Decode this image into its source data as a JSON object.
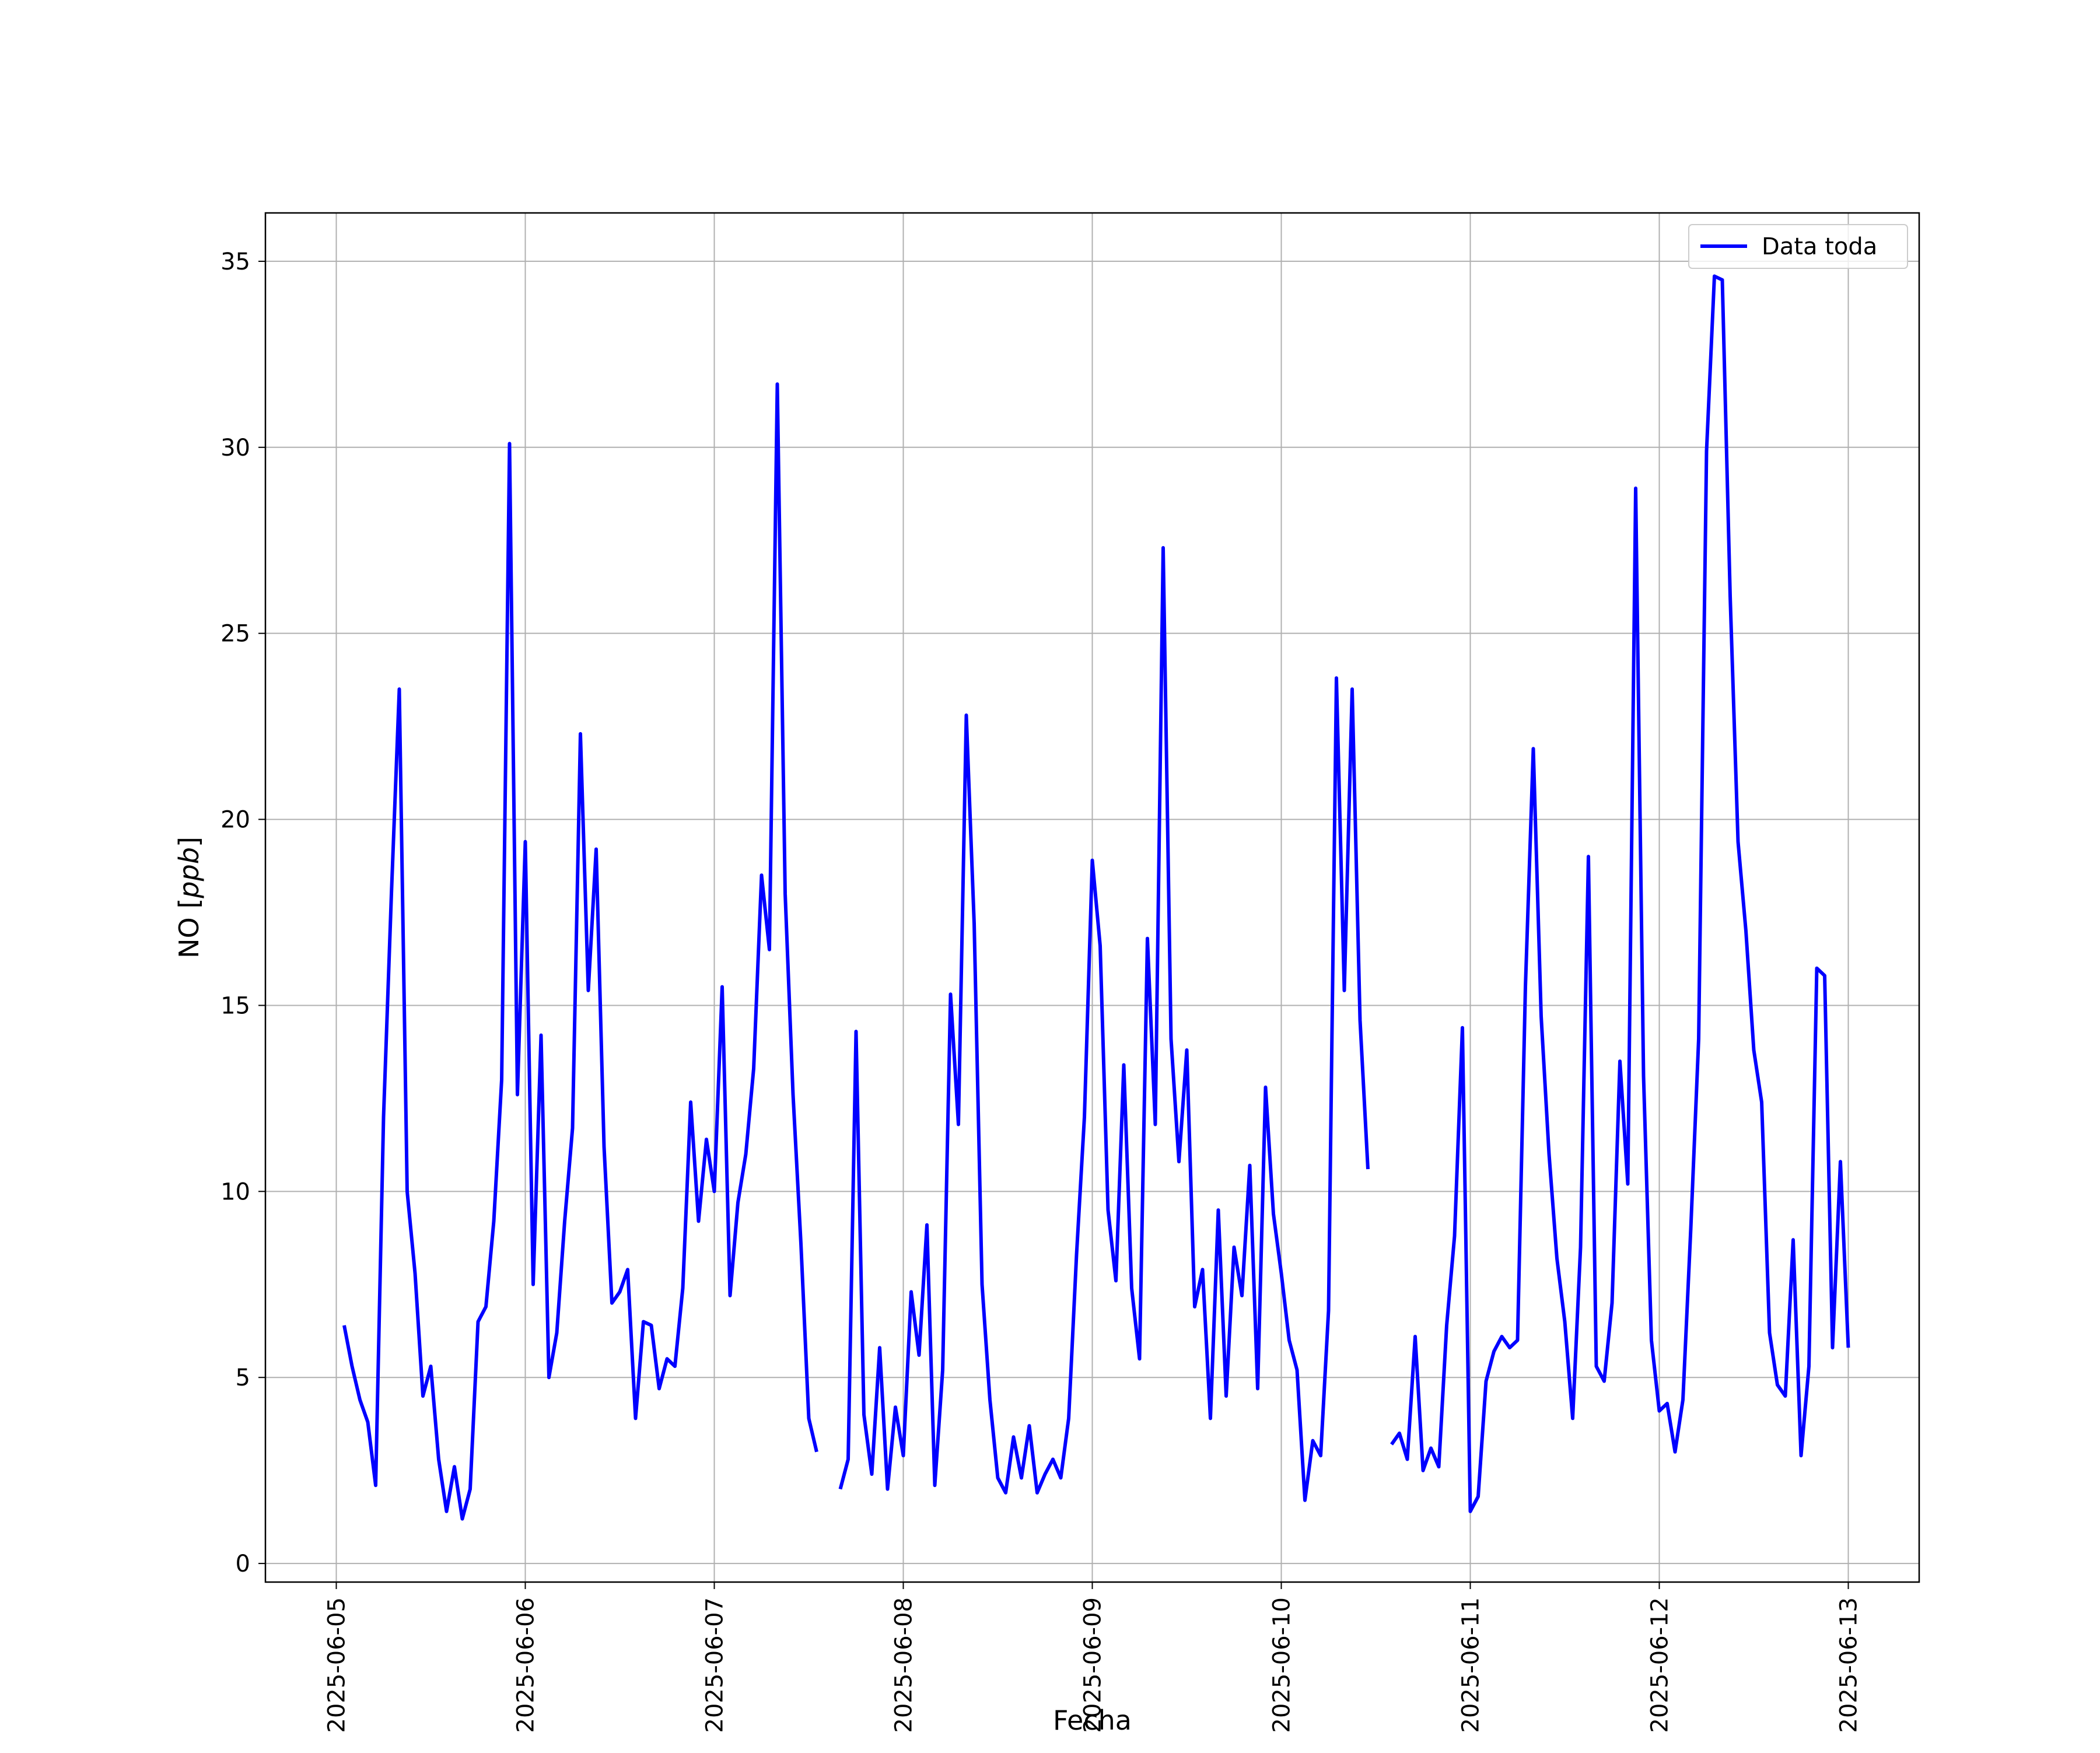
{
  "chart_data": {
    "type": "line",
    "title": "",
    "xlabel": "Fecha",
    "ylabel_text": "NO [",
    "ylabel_unit": "ppb",
    "ylabel_close": "]",
    "ylim": [
      -0.5,
      36.3
    ],
    "xlim": [
      "2025-06-04 15:00",
      "2025-06-13 09:00"
    ],
    "grid": true,
    "legend_position": "top-right",
    "yticks": [
      0,
      5,
      10,
      15,
      20,
      25,
      30,
      35
    ],
    "xticks": [
      "2025-06-05",
      "2025-06-06",
      "2025-06-07",
      "2025-06-08",
      "2025-06-09",
      "2025-06-10",
      "2025-06-11",
      "2025-06-12",
      "2025-06-13"
    ],
    "series": [
      {
        "name": "Data toda",
        "color": "#0000ff",
        "points": [
          [
            "2025-06-05 01:00",
            6.4
          ],
          [
            "2025-06-05 02:00",
            5.3
          ],
          [
            "2025-06-05 03:00",
            4.4
          ],
          [
            "2025-06-05 04:00",
            3.8
          ],
          [
            "2025-06-05 05:00",
            2.1
          ],
          [
            "2025-06-05 06:00",
            12.0
          ],
          [
            "2025-06-05 07:00",
            18.0
          ],
          [
            "2025-06-05 08:00",
            23.5
          ],
          [
            "2025-06-05 09:00",
            10.0
          ],
          [
            "2025-06-05 10:00",
            7.8
          ],
          [
            "2025-06-05 11:00",
            4.5
          ],
          [
            "2025-06-05 12:00",
            5.3
          ],
          [
            "2025-06-05 13:00",
            2.8
          ],
          [
            "2025-06-05 14:00",
            1.4
          ],
          [
            "2025-06-05 15:00",
            2.6
          ],
          [
            "2025-06-05 16:00",
            1.2
          ],
          [
            "2025-06-05 17:00",
            2.0
          ],
          [
            "2025-06-05 18:00",
            6.5
          ],
          [
            "2025-06-05 19:00",
            6.9
          ],
          [
            "2025-06-05 20:00",
            9.2
          ],
          [
            "2025-06-05 21:00",
            13.0
          ],
          [
            "2025-06-05 22:00",
            30.1
          ],
          [
            "2025-06-05 23:00",
            12.6
          ],
          [
            "2025-06-06 00:00",
            19.4
          ],
          [
            "2025-06-06 01:00",
            7.5
          ],
          [
            "2025-06-06 02:00",
            14.2
          ],
          [
            "2025-06-06 03:00",
            5.0
          ],
          [
            "2025-06-06 04:00",
            6.2
          ],
          [
            "2025-06-06 05:00",
            9.2
          ],
          [
            "2025-06-06 06:00",
            11.7
          ],
          [
            "2025-06-06 07:00",
            22.3
          ],
          [
            "2025-06-06 08:00",
            15.4
          ],
          [
            "2025-06-06 09:00",
            19.2
          ],
          [
            "2025-06-06 10:00",
            11.2
          ],
          [
            "2025-06-06 11:00",
            7.0
          ],
          [
            "2025-06-06 12:00",
            7.3
          ],
          [
            "2025-06-06 13:00",
            7.9
          ],
          [
            "2025-06-06 14:00",
            3.9
          ],
          [
            "2025-06-06 15:00",
            6.5
          ],
          [
            "2025-06-06 16:00",
            6.4
          ],
          [
            "2025-06-06 17:00",
            4.7
          ],
          [
            "2025-06-06 18:00",
            5.5
          ],
          [
            "2025-06-06 19:00",
            5.3
          ],
          [
            "2025-06-06 20:00",
            7.4
          ],
          [
            "2025-06-06 21:00",
            12.4
          ],
          [
            "2025-06-06 22:00",
            9.2
          ],
          [
            "2025-06-06 23:00",
            11.4
          ],
          [
            "2025-06-07 00:00",
            10.0
          ],
          [
            "2025-06-07 01:00",
            15.5
          ],
          [
            "2025-06-07 02:00",
            7.2
          ],
          [
            "2025-06-07 03:00",
            9.7
          ],
          [
            "2025-06-07 04:00",
            11.0
          ],
          [
            "2025-06-07 05:00",
            13.3
          ],
          [
            "2025-06-07 06:00",
            18.5
          ],
          [
            "2025-06-07 07:00",
            16.5
          ],
          [
            "2025-06-07 08:00",
            31.7
          ],
          [
            "2025-06-07 09:00",
            18.0
          ],
          [
            "2025-06-07 10:00",
            12.6
          ],
          [
            "2025-06-07 11:00",
            8.6
          ],
          [
            "2025-06-07 12:00",
            3.9
          ],
          [
            "2025-06-07 13:00",
            3.0
          ],
          null,
          [
            "2025-06-07 16:00",
            2.0
          ],
          [
            "2025-06-07 17:00",
            2.8
          ],
          [
            "2025-06-07 18:00",
            14.3
          ],
          [
            "2025-06-07 19:00",
            4.0
          ],
          [
            "2025-06-07 20:00",
            2.4
          ],
          [
            "2025-06-07 21:00",
            5.8
          ],
          [
            "2025-06-07 22:00",
            2.0
          ],
          [
            "2025-06-07 23:00",
            4.2
          ],
          [
            "2025-06-08 00:00",
            2.9
          ],
          [
            "2025-06-08 01:00",
            7.3
          ],
          [
            "2025-06-08 02:00",
            5.6
          ],
          [
            "2025-06-08 03:00",
            9.1
          ],
          [
            "2025-06-08 04:00",
            2.1
          ],
          [
            "2025-06-08 05:00",
            5.2
          ],
          [
            "2025-06-08 06:00",
            15.3
          ],
          [
            "2025-06-08 07:00",
            11.8
          ],
          [
            "2025-06-08 08:00",
            22.8
          ],
          [
            "2025-06-08 09:00",
            17.2
          ],
          [
            "2025-06-08 10:00",
            7.5
          ],
          [
            "2025-06-08 11:00",
            4.4
          ],
          [
            "2025-06-08 12:00",
            2.3
          ],
          [
            "2025-06-08 13:00",
            1.9
          ],
          [
            "2025-06-08 14:00",
            3.4
          ],
          [
            "2025-06-08 15:00",
            2.3
          ],
          [
            "2025-06-08 16:00",
            3.7
          ],
          [
            "2025-06-08 17:00",
            1.9
          ],
          [
            "2025-06-08 18:00",
            2.4
          ],
          [
            "2025-06-08 19:00",
            2.8
          ],
          [
            "2025-06-08 20:00",
            2.3
          ],
          [
            "2025-06-08 21:00",
            3.9
          ],
          [
            "2025-06-08 22:00",
            8.3
          ],
          [
            "2025-06-08 23:00",
            12.0
          ],
          [
            "2025-06-09 00:00",
            18.9
          ],
          [
            "2025-06-09 01:00",
            16.6
          ],
          [
            "2025-06-09 02:00",
            9.5
          ],
          [
            "2025-06-09 03:00",
            7.6
          ],
          [
            "2025-06-09 04:00",
            13.4
          ],
          [
            "2025-06-09 05:00",
            7.4
          ],
          [
            "2025-06-09 06:00",
            5.5
          ],
          [
            "2025-06-09 07:00",
            16.8
          ],
          [
            "2025-06-09 08:00",
            11.8
          ],
          [
            "2025-06-09 09:00",
            27.3
          ],
          [
            "2025-06-09 10:00",
            14.1
          ],
          [
            "2025-06-09 11:00",
            10.8
          ],
          [
            "2025-06-09 12:00",
            13.8
          ],
          [
            "2025-06-09 13:00",
            6.9
          ],
          [
            "2025-06-09 14:00",
            7.9
          ],
          [
            "2025-06-09 15:00",
            3.9
          ],
          [
            "2025-06-09 16:00",
            9.5
          ],
          [
            "2025-06-09 17:00",
            4.5
          ],
          [
            "2025-06-09 18:00",
            8.5
          ],
          [
            "2025-06-09 19:00",
            7.2
          ],
          [
            "2025-06-09 20:00",
            10.7
          ],
          [
            "2025-06-09 21:00",
            4.7
          ],
          [
            "2025-06-09 22:00",
            12.8
          ],
          [
            "2025-06-09 23:00",
            9.4
          ],
          [
            "2025-06-10 00:00",
            7.8
          ],
          [
            "2025-06-10 01:00",
            6.0
          ],
          [
            "2025-06-10 02:00",
            5.2
          ],
          [
            "2025-06-10 03:00",
            1.7
          ],
          [
            "2025-06-10 04:00",
            3.3
          ],
          [
            "2025-06-10 05:00",
            2.9
          ],
          [
            "2025-06-10 06:00",
            6.8
          ],
          [
            "2025-06-10 07:00",
            23.8
          ],
          [
            "2025-06-10 08:00",
            15.4
          ],
          [
            "2025-06-10 09:00",
            23.5
          ],
          [
            "2025-06-10 10:00",
            14.6
          ],
          [
            "2025-06-10 11:00",
            10.6
          ],
          null,
          [
            "2025-06-10 14:00",
            3.2
          ],
          [
            "2025-06-10 15:00",
            3.5
          ],
          [
            "2025-06-10 16:00",
            2.8
          ],
          [
            "2025-06-10 17:00",
            6.1
          ],
          [
            "2025-06-10 18:00",
            2.5
          ],
          [
            "2025-06-10 19:00",
            3.1
          ],
          [
            "2025-06-10 20:00",
            2.6
          ],
          [
            "2025-06-10 21:00",
            6.4
          ],
          [
            "2025-06-10 22:00",
            8.8
          ],
          [
            "2025-06-10 23:00",
            14.4
          ],
          [
            "2025-06-11 00:00",
            1.4
          ],
          [
            "2025-06-11 01:00",
            1.8
          ],
          [
            "2025-06-11 02:00",
            4.9
          ],
          [
            "2025-06-11 03:00",
            5.7
          ],
          [
            "2025-06-11 04:00",
            6.1
          ],
          [
            "2025-06-11 05:00",
            5.8
          ],
          [
            "2025-06-11 06:00",
            6.0
          ],
          [
            "2025-06-11 07:00",
            15.5
          ],
          [
            "2025-06-11 08:00",
            21.9
          ],
          [
            "2025-06-11 09:00",
            14.7
          ],
          [
            "2025-06-11 10:00",
            11.0
          ],
          [
            "2025-06-11 11:00",
            8.2
          ],
          [
            "2025-06-11 12:00",
            6.5
          ],
          [
            "2025-06-11 13:00",
            3.9
          ],
          [
            "2025-06-11 14:00",
            8.5
          ],
          [
            "2025-06-11 15:00",
            19.0
          ],
          [
            "2025-06-11 16:00",
            5.3
          ],
          [
            "2025-06-11 17:00",
            4.9
          ],
          [
            "2025-06-11 18:00",
            7.0
          ],
          [
            "2025-06-11 19:00",
            13.5
          ],
          [
            "2025-06-11 20:00",
            10.2
          ],
          [
            "2025-06-11 21:00",
            28.9
          ],
          [
            "2025-06-11 22:00",
            13.1
          ],
          [
            "2025-06-11 23:00",
            6.0
          ],
          [
            "2025-06-12 00:00",
            4.1
          ],
          [
            "2025-06-12 01:00",
            4.3
          ],
          [
            "2025-06-12 02:00",
            3.0
          ],
          [
            "2025-06-12 03:00",
            4.4
          ],
          [
            "2025-06-12 04:00",
            9.0
          ],
          [
            "2025-06-12 05:00",
            14.1
          ],
          [
            "2025-06-12 06:00",
            29.9
          ],
          [
            "2025-06-12 07:00",
            34.6
          ],
          [
            "2025-06-12 08:00",
            34.5
          ],
          [
            "2025-06-12 09:00",
            26.0
          ],
          [
            "2025-06-12 10:00",
            19.4
          ],
          [
            "2025-06-12 11:00",
            17.0
          ],
          [
            "2025-06-12 12:00",
            13.8
          ],
          [
            "2025-06-12 13:00",
            12.4
          ],
          [
            "2025-06-12 14:00",
            6.2
          ],
          [
            "2025-06-12 15:00",
            4.8
          ],
          [
            "2025-06-12 16:00",
            4.5
          ],
          [
            "2025-06-12 17:00",
            8.7
          ],
          [
            "2025-06-12 18:00",
            2.9
          ],
          [
            "2025-06-12 19:00",
            5.3
          ],
          [
            "2025-06-12 20:00",
            16.0
          ],
          [
            "2025-06-12 21:00",
            15.8
          ],
          [
            "2025-06-12 22:00",
            5.8
          ],
          [
            "2025-06-12 23:00",
            10.8
          ],
          [
            "2025-06-13 00:00",
            5.8
          ]
        ]
      }
    ]
  }
}
